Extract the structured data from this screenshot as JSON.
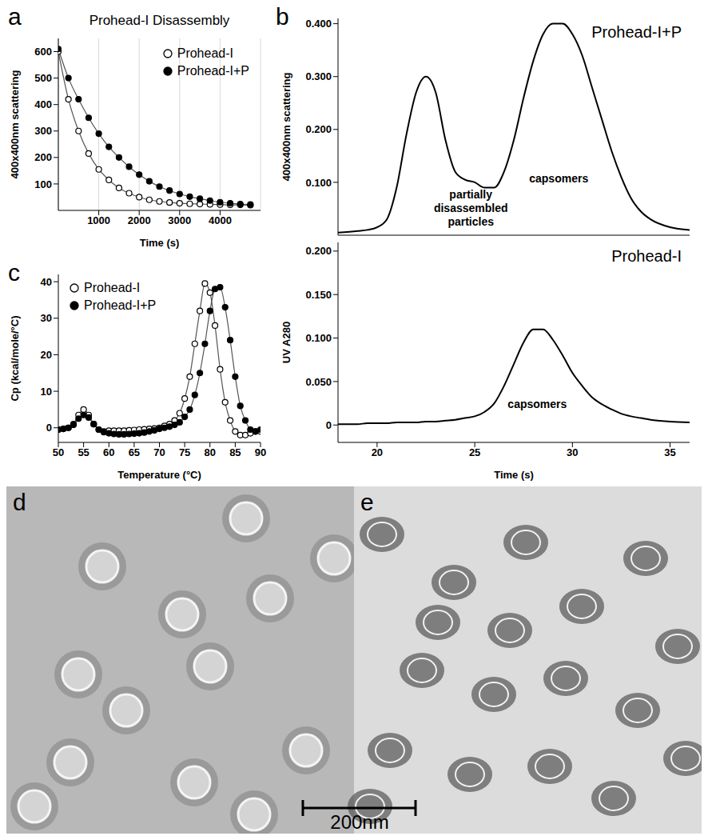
{
  "chart_data": [
    {
      "panel": "a",
      "type": "line",
      "title": "Prohead-I Disassembly",
      "x_label": "Time (s)",
      "y_label": "400x400nm scattering",
      "x": [
        0,
        250,
        500,
        750,
        1000,
        1250,
        1500,
        1750,
        2000,
        2250,
        2500,
        2750,
        3000,
        3250,
        3500,
        3750,
        4000,
        4250,
        4500,
        4750
      ],
      "series": [
        {
          "name": "Prohead-I",
          "color": "#000000",
          "marker": "open circle",
          "values": [
            600,
            420,
            300,
            215,
            155,
            115,
            85,
            65,
            50,
            40,
            34,
            30,
            27,
            25,
            24,
            23,
            22,
            21,
            21,
            20
          ]
        },
        {
          "name": "Prohead-I+P",
          "color": "#000000",
          "marker": "filled circle",
          "values": [
            610,
            500,
            420,
            350,
            290,
            240,
            200,
            165,
            135,
            110,
            90,
            75,
            62,
            52,
            44,
            37,
            31,
            27,
            24,
            22
          ]
        }
      ],
      "xlim": [
        0,
        5000
      ],
      "xticks": [
        1000,
        2000,
        3000,
        4000
      ],
      "ylim": [
        0,
        650
      ],
      "yticks": [
        100,
        200,
        300,
        400,
        500,
        600
      ],
      "grid": true,
      "legend": "upper right"
    },
    {
      "panel": "b",
      "type": "line",
      "title": "Prohead-I+P",
      "y_label": "400x400nm scattering",
      "x": [
        18,
        19,
        19.5,
        20,
        20.5,
        21,
        21.5,
        22,
        22.5,
        23,
        23.5,
        24,
        24.5,
        25,
        25.5,
        26,
        26.5,
        27,
        27.5,
        28,
        28.5,
        29,
        29.5,
        30,
        30.5,
        31,
        31.5,
        32,
        32.5,
        33,
        33.5,
        34,
        35,
        36
      ],
      "values": [
        0.005,
        0.008,
        0.01,
        0.015,
        0.03,
        0.09,
        0.19,
        0.27,
        0.3,
        0.27,
        0.18,
        0.12,
        0.105,
        0.1,
        0.09,
        0.09,
        0.12,
        0.18,
        0.26,
        0.33,
        0.38,
        0.4,
        0.4,
        0.38,
        0.34,
        0.28,
        0.22,
        0.16,
        0.11,
        0.07,
        0.045,
        0.03,
        0.015,
        0.01
      ],
      "color": "#000000",
      "xlim": [
        18,
        36
      ],
      "xticks": [
        20,
        25,
        30,
        35
      ],
      "ylim": [
        0,
        0.41
      ],
      "yticks": [
        0,
        {
          "value": 0.1,
          "label": "0.100"
        },
        {
          "value": 0.2,
          "label": "0.200"
        },
        {
          "value": 0.3,
          "label": "0.300"
        },
        {
          "value": 0.4,
          "label": "0.400"
        }
      ],
      "tick_labels": "y",
      "grid": false,
      "annotations": [
        {
          "text": "partially disassembled particles",
          "x": 24.8,
          "y": 0.07
        },
        {
          "text": "capsomers",
          "x": 29.3,
          "y": 0.1
        }
      ]
    },
    {
      "type": "line",
      "title": "Prohead-I",
      "y_label": "UV A280",
      "x_label": "Time (s)",
      "x": [
        18,
        19,
        19.5,
        20,
        20.5,
        21,
        21.5,
        22,
        22.5,
        23,
        23.5,
        24,
        24.5,
        25,
        25.5,
        26,
        26.5,
        27,
        27.5,
        28,
        28.5,
        29,
        29.5,
        30,
        30.5,
        31,
        31.5,
        32,
        32.5,
        33,
        33.5,
        34,
        35,
        36
      ],
      "values": [
        0.001,
        0.001,
        0.002,
        0.002,
        0.002,
        0.003,
        0.003,
        0.003,
        0.004,
        0.004,
        0.005,
        0.006,
        0.008,
        0.01,
        0.015,
        0.025,
        0.045,
        0.07,
        0.095,
        0.11,
        0.11,
        0.098,
        0.08,
        0.06,
        0.045,
        0.032,
        0.024,
        0.018,
        0.013,
        0.01,
        0.008,
        0.006,
        0.004,
        0.003
      ],
      "color": "#000000",
      "xlim": [
        18,
        36
      ],
      "xticks": [
        20,
        25,
        30,
        35
      ],
      "ylim": [
        -0.02,
        0.21
      ],
      "yticks": [
        0,
        {
          "value": 0.05,
          "label": "0.050"
        },
        {
          "value": 0.1,
          "label": "0.100"
        },
        {
          "value": 0.15,
          "label": "0.150"
        },
        {
          "value": 0.2,
          "label": "0.200"
        }
      ],
      "grid": false,
      "annotations": [
        {
          "text": "capsomers",
          "x": 28.2,
          "y": 0.02
        }
      ]
    },
    {
      "panel": "c",
      "type": "line",
      "x_label": "Temperature (°C)",
      "y_label": "Cp (kcal/mole/°C)",
      "x": [
        50,
        51,
        52,
        53,
        54,
        55,
        56,
        57,
        58,
        59,
        60,
        61,
        62,
        63,
        64,
        65,
        66,
        67,
        68,
        69,
        70,
        71,
        72,
        73,
        74,
        75,
        76,
        77,
        78,
        79,
        80,
        81,
        82,
        83,
        84,
        85,
        86,
        87,
        88,
        89,
        90
      ],
      "series": [
        {
          "name": "Prohead-I",
          "color": "#000000",
          "marker": "open circle",
          "values": [
            -0.5,
            -0.3,
            0,
            1,
            3.5,
            5,
            3.5,
            1,
            -0.5,
            -1,
            -0.8,
            -0.8,
            -0.8,
            -0.8,
            -0.7,
            -0.6,
            -0.5,
            -0.4,
            -0.3,
            -0.2,
            0,
            0.5,
            1,
            2,
            4,
            8,
            14,
            23,
            32,
            39.5,
            37,
            28,
            16,
            7,
            2,
            -1,
            -2,
            -2,
            -1.5,
            -1,
            -1
          ]
        },
        {
          "name": "Prohead-I+P",
          "color": "#000000",
          "marker": "filled circle",
          "values": [
            -0.5,
            -0.3,
            0,
            0.8,
            2.5,
            3.5,
            2.8,
            1,
            -0.5,
            -1.2,
            -1.5,
            -1.7,
            -1.8,
            -1.8,
            -1.7,
            -1.6,
            -1.5,
            -1.3,
            -1,
            -0.7,
            -0.3,
            0,
            0.3,
            0.8,
            1.5,
            3,
            5,
            9,
            15,
            23,
            32,
            38,
            38.5,
            33,
            24,
            14,
            6,
            2,
            -0.5,
            -1,
            -0.5
          ]
        }
      ],
      "xlim": [
        50,
        90
      ],
      "xticks": [
        50,
        55,
        60,
        65,
        70,
        75,
        80,
        85,
        90
      ],
      "ylim": [
        -4,
        42
      ],
      "yticks": [
        0,
        10,
        20,
        30,
        40
      ],
      "grid": false,
      "legend": "upper left"
    }
  ],
  "micrographs": {
    "panels": [
      "d",
      "e"
    ],
    "scale_bar": "200nm"
  }
}
